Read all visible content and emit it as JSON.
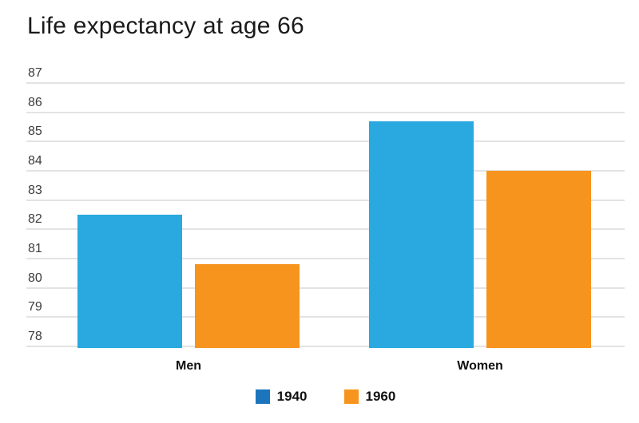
{
  "title": "Life expectancy at age 66",
  "colors": {
    "bar_1940": "#29A9E0",
    "legend_1940": "#1C75BC",
    "bar_1960": "#F7941E",
    "legend_1960": "#F7941E",
    "gridline": "#E3E3E3",
    "title_text": "#1A1A1A",
    "tick_text": "#3C3C3C",
    "label_text": "#111111"
  },
  "chart_data": {
    "type": "bar",
    "title": "Life expectancy at age 66",
    "categories": [
      "Men",
      "Women"
    ],
    "series": [
      {
        "name": "1940",
        "color": "#29A9E0",
        "legend_color": "#1C75BC",
        "values": [
          82.5,
          85.7
        ]
      },
      {
        "name": "1960",
        "color": "#F7941E",
        "legend_color": "#F7941E",
        "values": [
          80.8,
          84.0
        ]
      }
    ],
    "ylim": [
      78,
      87
    ],
    "yticks": [
      87,
      86,
      85,
      84,
      83,
      82,
      81,
      80,
      79,
      78
    ],
    "xlabel": "",
    "ylabel": "",
    "grid": true,
    "legend_position": "bottom",
    "baseline": 78
  }
}
